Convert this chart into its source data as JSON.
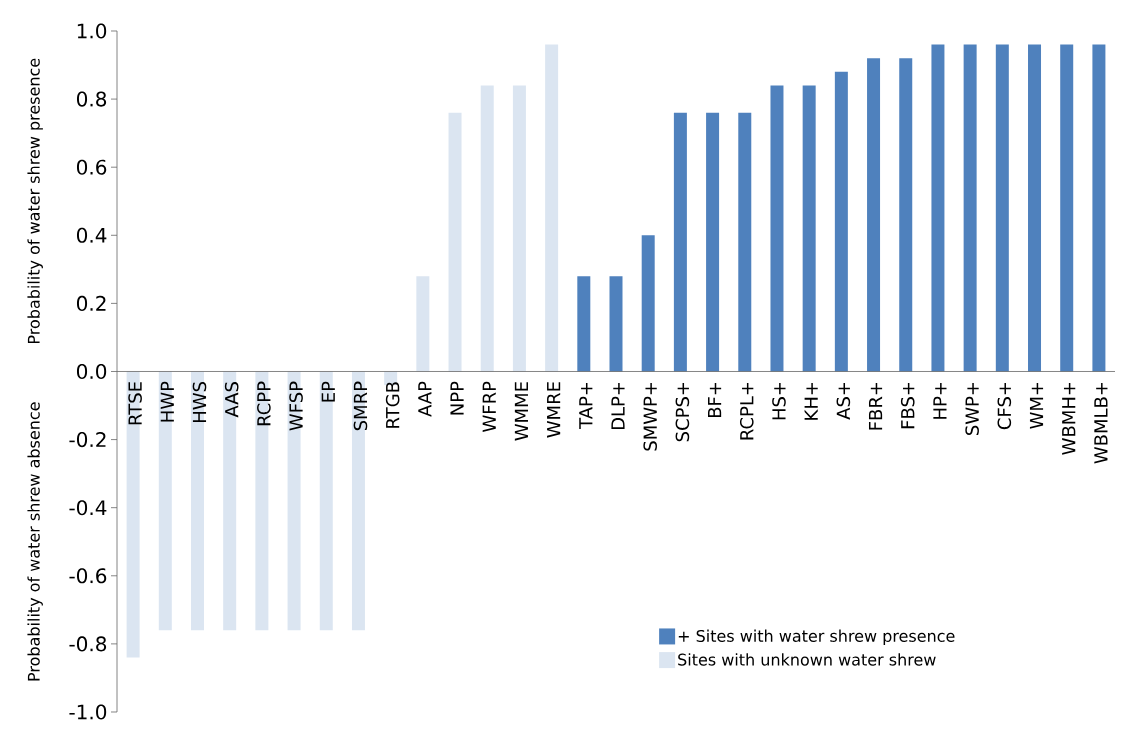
{
  "chart_data": {
    "type": "bar",
    "ylabel": "Probability of water shrew presence",
    "annotations": [
      "Probability of water shrew absence"
    ],
    "categories": [
      "RTSE",
      "HWP",
      "HWS",
      "AAS",
      "RCPP",
      "WFSP",
      "EP",
      "SMRP",
      "RTGB",
      "AAP",
      "NPP",
      "WFRP",
      "WMME",
      "WMRE",
      "TAP+",
      "DLP+",
      "SMWP+",
      "SCPS+",
      "BF+",
      "RCPL+",
      "HS+",
      "KH+",
      "AS+",
      "FBR+",
      "FBS+",
      "HP+",
      "SWP+",
      "CFS+",
      "WM+",
      "WBMH+",
      "WBMLB+"
    ],
    "series": [
      {
        "name": "+ Sites with water shrew presence",
        "color": "#4f81bd",
        "values": [
          null,
          null,
          null,
          null,
          null,
          null,
          null,
          null,
          null,
          null,
          null,
          null,
          null,
          null,
          0.28,
          0.28,
          0.4,
          0.76,
          0.76,
          0.76,
          0.84,
          0.84,
          0.88,
          0.92,
          0.92,
          0.96,
          0.96,
          0.96,
          0.96,
          0.96,
          0.96
        ]
      },
      {
        "name": "Sites with unknown water shrew",
        "color": "#dbe5f1",
        "values": [
          -0.84,
          -0.76,
          -0.76,
          -0.76,
          -0.76,
          -0.76,
          -0.76,
          -0.76,
          -0.04,
          0.28,
          0.76,
          0.84,
          0.84,
          0.96,
          null,
          null,
          null,
          null,
          null,
          null,
          null,
          null,
          null,
          null,
          null,
          null,
          null,
          null,
          null,
          null,
          null
        ]
      }
    ],
    "ylim": [
      -1.0,
      1.0
    ],
    "yticks": [
      {
        "value": -1.0,
        "label": "-1.0"
      },
      -0.8,
      -0.6,
      -0.4,
      -0.2,
      {
        "value": 0,
        "label": "0.0"
      },
      0.2,
      0.4,
      0.6,
      0.8,
      {
        "value": 1.0,
        "label": "1.0"
      }
    ],
    "legend": "bottom right"
  }
}
